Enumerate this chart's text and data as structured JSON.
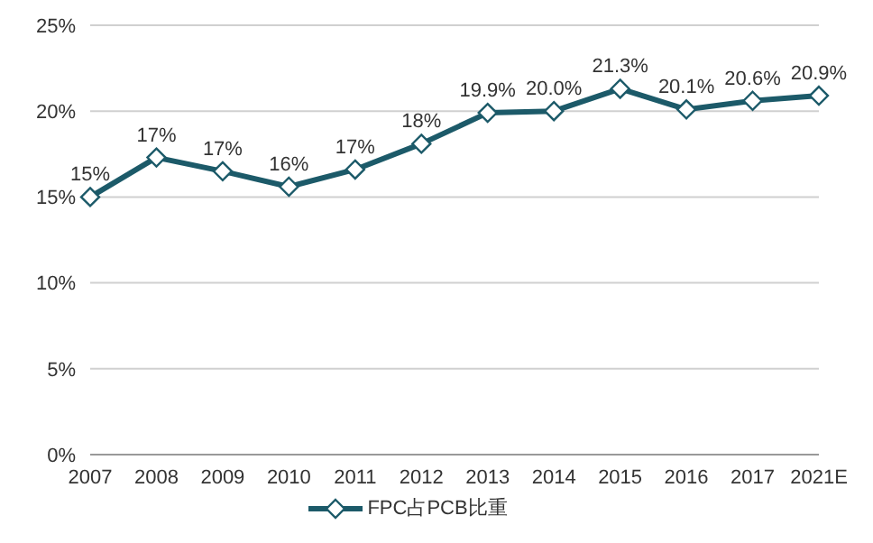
{
  "chart_data": {
    "type": "line",
    "categories": [
      "2007",
      "2008",
      "2009",
      "2010",
      "2011",
      "2012",
      "2013",
      "2014",
      "2015",
      "2016",
      "2017",
      "2021E"
    ],
    "series": [
      {
        "name": "FPC占PCB比重",
        "color": "#1c5a69",
        "values": [
          15,
          17.3,
          16.5,
          15.6,
          16.6,
          18.1,
          19.9,
          20,
          21.3,
          20.1,
          20.6,
          20.9
        ],
        "value_labels": [
          "15%",
          "17%",
          "17%",
          "16%",
          "17%",
          "18%",
          "19.9%",
          "20.0%",
          "21.3%",
          "20.1%",
          "20.6%",
          "20.9%"
        ]
      }
    ],
    "ylim": [
      0,
      25
    ],
    "yticks": [
      {
        "value": 0,
        "label": "0%"
      },
      {
        "value": 5,
        "label": "5%"
      },
      {
        "value": 10,
        "label": "10%"
      },
      {
        "value": 15,
        "label": "15%"
      },
      {
        "value": 20,
        "label": "20%"
      },
      {
        "value": 25,
        "label": "25%"
      }
    ],
    "grid": "y",
    "legend": "bottom",
    "marker": "diamond",
    "line_style": "solid"
  }
}
